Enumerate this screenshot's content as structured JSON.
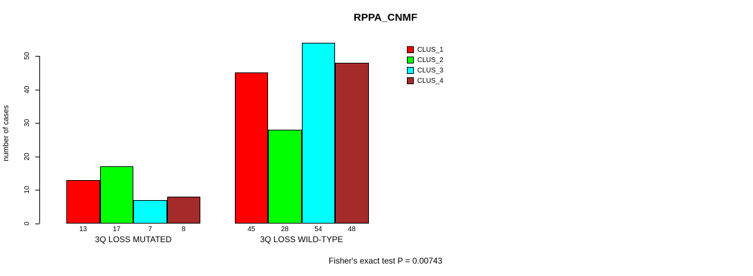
{
  "chart_data": {
    "type": "bar",
    "title": "RPPA_CNMF",
    "ylabel": "number of cases",
    "xlabel": "",
    "yticks": [
      0,
      10,
      20,
      30,
      40,
      50
    ],
    "ylim": [
      0,
      54
    ],
    "grid": false,
    "legend_position": "right-of-plot",
    "categories": [
      "3Q LOSS MUTATED",
      "3Q LOSS WILD-TYPE"
    ],
    "groups": [
      {
        "label": "3Q LOSS MUTATED",
        "values": [
          13,
          17,
          7,
          8
        ]
      },
      {
        "label": "3Q LOSS WILD-TYPE",
        "values": [
          45,
          28,
          54,
          48
        ]
      }
    ],
    "series": [
      {
        "name": "CLUS_1",
        "color": "#FF0000"
      },
      {
        "name": "CLUS_2",
        "color": "#00FF00"
      },
      {
        "name": "CLUS_3",
        "color": "#00FFFF"
      },
      {
        "name": "CLUS_4",
        "color": "#A52A2A"
      }
    ],
    "annotation": "Fisher's exact test P = 0.00743"
  }
}
